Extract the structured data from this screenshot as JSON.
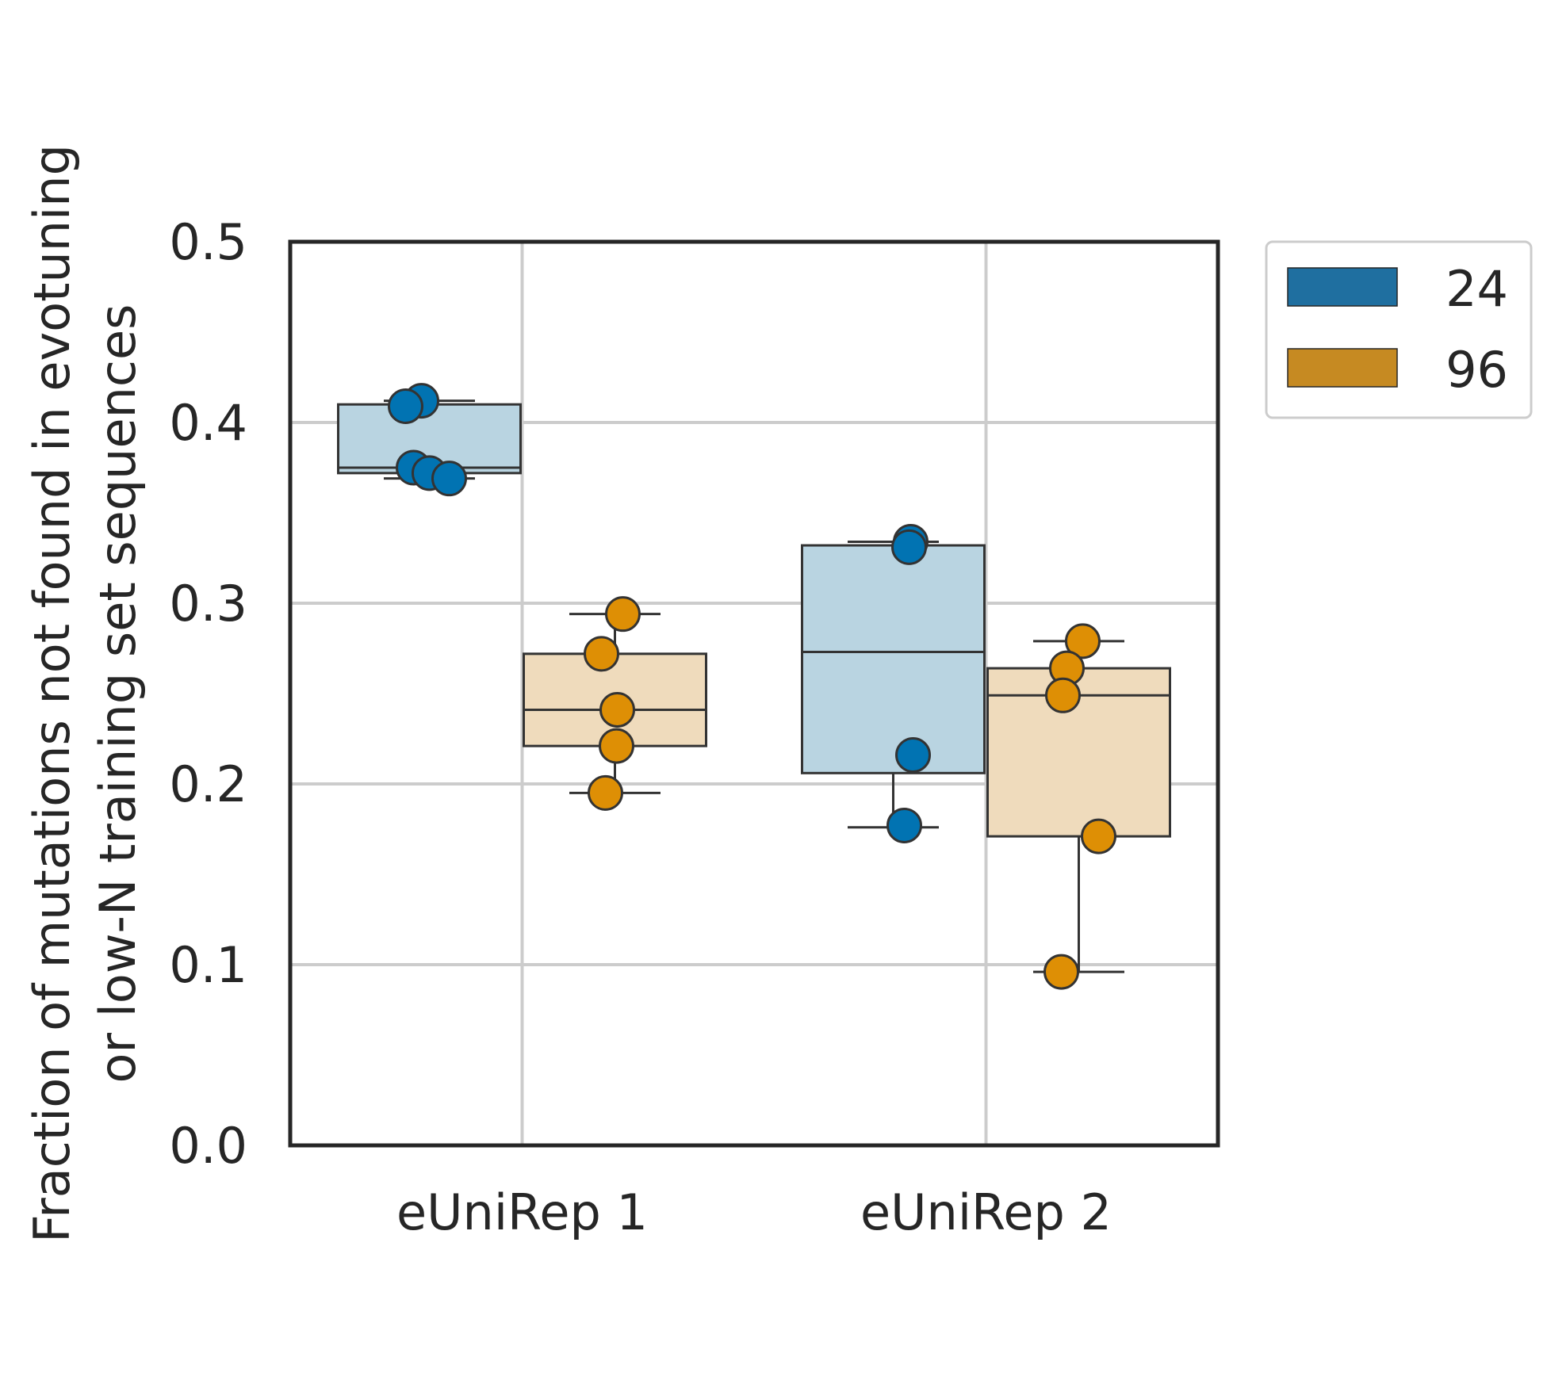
{
  "chart_data": {
    "type": "box",
    "title": "",
    "xlabel": "",
    "ylabel": [
      "Fraction of mutations not found in evotuning",
      "or low-N training set sequences"
    ],
    "ylim": [
      0,
      0.5
    ],
    "yticks": [
      0.0,
      0.1,
      0.2,
      0.3,
      0.4,
      0.5
    ],
    "ytick_labels": [
      "0.0",
      "0.1",
      "0.2",
      "0.3",
      "0.4",
      "0.5"
    ],
    "categories": [
      "eUniRep 1",
      "eUniRep 2"
    ],
    "grid": true,
    "legend_position": "outside upper right",
    "series": [
      {
        "name": "24",
        "color": "#0173b2",
        "box_fill": "#b9d4e1",
        "groups": [
          {
            "category": "eUniRep 1",
            "whisker_low": 0.369,
            "q1": 0.372,
            "median": 0.375,
            "q3": 0.41,
            "whisker_high": 0.412,
            "points": [
              0.412,
              0.409,
              0.375,
              0.372,
              0.369
            ]
          },
          {
            "category": "eUniRep 2",
            "whisker_low": 0.176,
            "q1": 0.206,
            "median": 0.273,
            "q3": 0.332,
            "whisker_high": 0.334,
            "points": [
              0.334,
              0.331,
              0.216,
              0.177
            ]
          }
        ]
      },
      {
        "name": "96",
        "color": "#de8f05",
        "box_fill": "#efdbbc",
        "groups": [
          {
            "category": "eUniRep 1",
            "whisker_low": 0.195,
            "q1": 0.221,
            "median": 0.241,
            "q3": 0.272,
            "whisker_high": 0.294,
            "points": [
              0.294,
              0.272,
              0.241,
              0.221,
              0.195
            ]
          },
          {
            "category": "eUniRep 2",
            "whisker_low": 0.096,
            "q1": 0.171,
            "median": 0.249,
            "q3": 0.264,
            "whisker_high": 0.279,
            "points": [
              0.279,
              0.264,
              0.249,
              0.171,
              0.096
            ]
          }
        ]
      }
    ],
    "legend": [
      {
        "label": "24",
        "color": "#1f6fa0"
      },
      {
        "label": "96",
        "color": "#c68a22"
      }
    ]
  }
}
